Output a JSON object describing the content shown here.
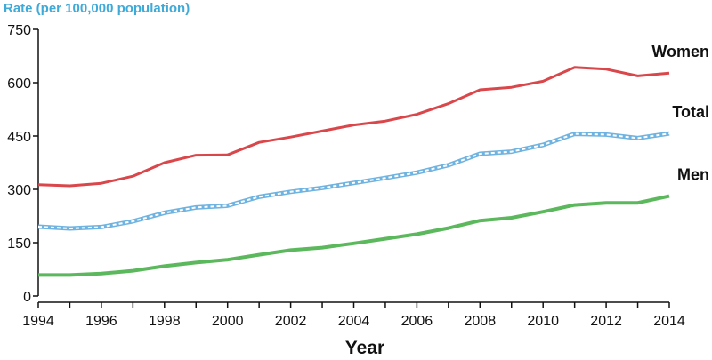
{
  "chart_data": {
    "type": "line",
    "title": "",
    "ylabel": "Rate (per 100,000 population)",
    "xlabel": "Year",
    "ylim": [
      0,
      750
    ],
    "yticks": [
      0,
      150,
      300,
      450,
      600,
      750
    ],
    "xlim": [
      1994,
      2014
    ],
    "xticks": [
      1994,
      1996,
      1998,
      2000,
      2002,
      2004,
      2006,
      2008,
      2010,
      2012,
      2014
    ],
    "x": [
      1994,
      1995,
      1996,
      1997,
      1998,
      1999,
      2000,
      2001,
      2002,
      2003,
      2004,
      2005,
      2006,
      2007,
      2008,
      2009,
      2010,
      2011,
      2012,
      2013,
      2014
    ],
    "series": [
      {
        "name": "Women",
        "color": "#d9474b",
        "style": "solid",
        "values": [
          313,
          310,
          317,
          337,
          375,
          396,
          397,
          432,
          447,
          464,
          481,
          492,
          511,
          541,
          580,
          587,
          604,
          643,
          638,
          619,
          627
        ]
      },
      {
        "name": "Total",
        "color": "#8ec8ec",
        "style": "dashed",
        "values": [
          195,
          190,
          194,
          210,
          234,
          249,
          254,
          279,
          293,
          304,
          318,
          332,
          347,
          368,
          400,
          406,
          425,
          456,
          454,
          444,
          457
        ]
      },
      {
        "name": "Men",
        "color": "#5cb85c",
        "style": "solid",
        "values": [
          59,
          59,
          63,
          71,
          84,
          94,
          102,
          116,
          129,
          136,
          148,
          161,
          174,
          191,
          212,
          220,
          237,
          256,
          262,
          262,
          281
        ]
      }
    ]
  }
}
